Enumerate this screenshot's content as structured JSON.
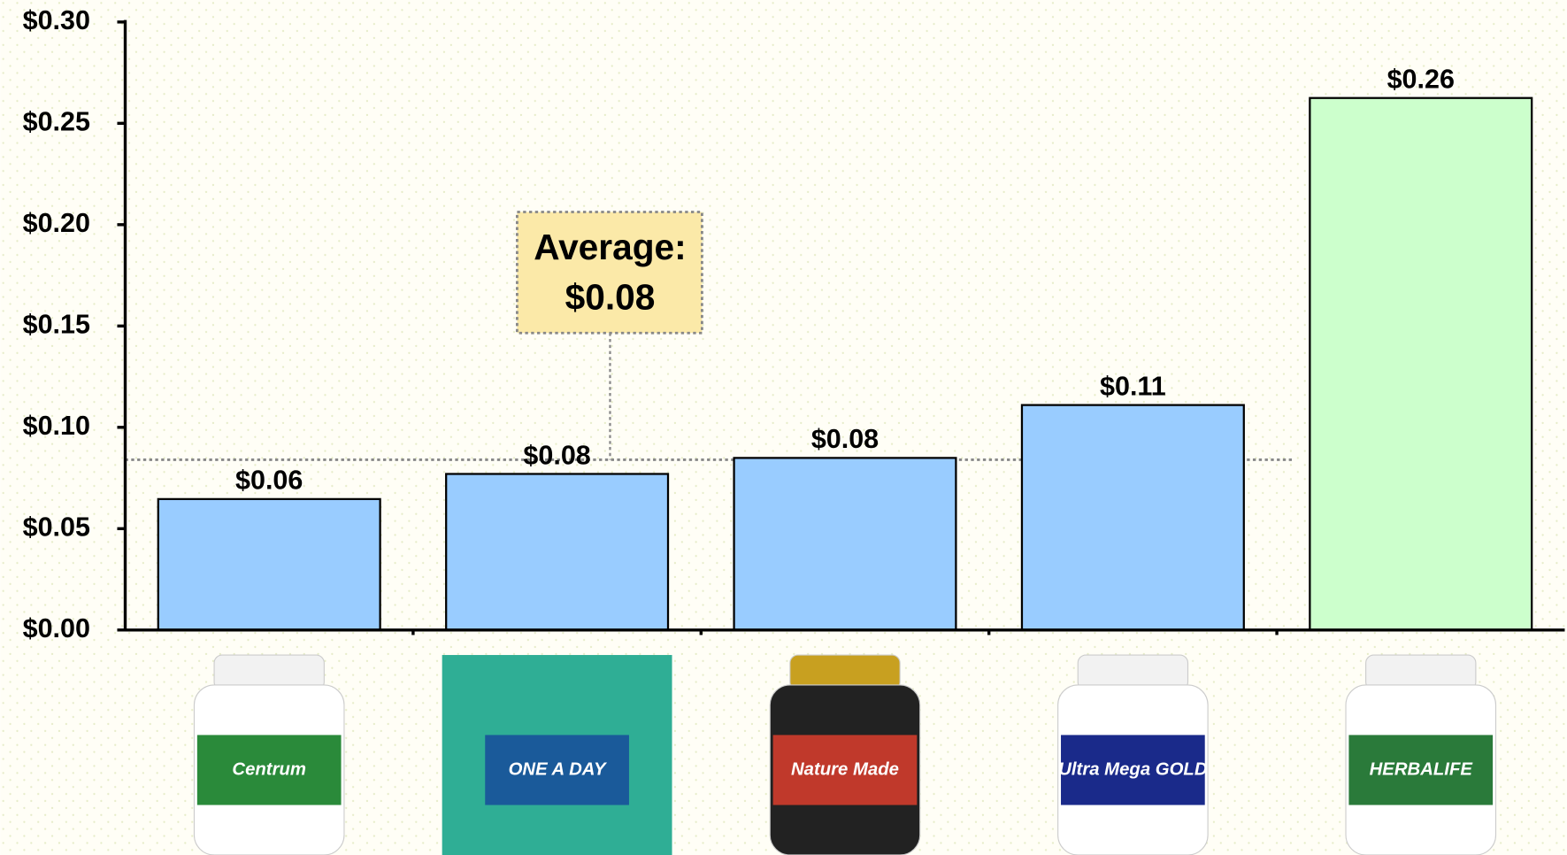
{
  "chart_data": {
    "type": "bar",
    "categories": [
      "Centrum",
      "ONE A DAY",
      "Nature Made",
      "Ultra Mega GOLD",
      "HERBALIFE"
    ],
    "values": [
      0.0646,
      0.077,
      0.0849,
      0.111,
      0.2625
    ],
    "value_labels": [
      "$0.06",
      "$0.08",
      "$0.08",
      "$0.11",
      "$0.26"
    ],
    "colors": [
      "#99ccff",
      "#99ccff",
      "#99ccff",
      "#99ccff",
      "#ccffcc"
    ],
    "ylim": [
      0,
      0.3
    ],
    "yticks": [
      {
        "value": 0,
        "label": "$0.00"
      },
      {
        "value": 0.05,
        "label": "$0.05"
      },
      {
        "value": 0.1,
        "label": "$0.10"
      },
      {
        "value": 0.15,
        "label": "$0.15"
      },
      {
        "value": 0.2,
        "label": "$0.20"
      },
      {
        "value": 0.25,
        "label": "$0.25"
      },
      {
        "value": 0.3,
        "label": "$0.30"
      }
    ],
    "average": {
      "text": "Average:",
      "value": 0.084,
      "value_label": "$0.08"
    }
  }
}
